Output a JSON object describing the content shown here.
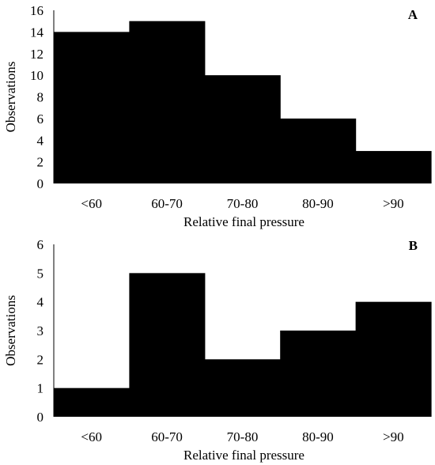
{
  "chart_data": [
    {
      "type": "bar",
      "panel_label": "A",
      "categories": [
        "<60",
        "60-70",
        "70-80",
        "80-90",
        ">90"
      ],
      "values": [
        14,
        15,
        10,
        6,
        3
      ],
      "xlabel": "Relative final pressure",
      "ylabel": "Observations",
      "ylim": [
        0,
        16
      ],
      "yticks": [
        0,
        2,
        4,
        6,
        8,
        10,
        12,
        14,
        16
      ],
      "bar_color": "#000000",
      "grid": false
    },
    {
      "type": "bar",
      "panel_label": "B",
      "categories": [
        "<60",
        "60-70",
        "70-80",
        "80-90",
        ">90"
      ],
      "values": [
        1,
        5,
        2,
        3,
        4
      ],
      "xlabel": "Relative final pressure",
      "ylabel": "Observations",
      "ylim": [
        0,
        6
      ],
      "yticks": [
        0,
        1,
        2,
        3,
        4,
        5,
        6
      ],
      "bar_color": "#000000",
      "grid": false
    }
  ]
}
